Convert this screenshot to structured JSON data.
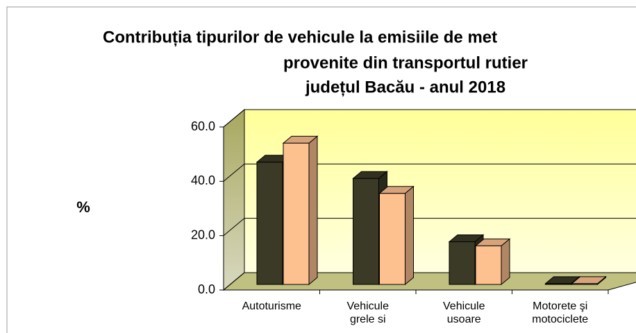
{
  "chart_data": {
    "type": "bar3d",
    "title": [
      "Contribuția tipurilor de vehicule la emisiile de met",
      "provenite din transportul rutier",
      "județul Bacău - anul 2018"
    ],
    "ylabel": "%",
    "categories": [
      [
        "Autoturisme"
      ],
      [
        "Vehicule",
        "grele si"
      ],
      [
        "Vehicule",
        "usoare"
      ],
      [
        "Motorete şi",
        "motociclete"
      ]
    ],
    "series": [
      {
        "color": "#3b3a26",
        "values": [
          45,
          39,
          15.7,
          0.3
        ]
      },
      {
        "color": "#fdc08f",
        "values": [
          52,
          33.5,
          14.2,
          0.3
        ]
      }
    ],
    "ylim": [
      0,
      60
    ],
    "yticks": [
      {
        "value": 0,
        "label": "0.0"
      },
      {
        "value": 20,
        "label": "20.0"
      },
      {
        "value": 40,
        "label": "40.0"
      },
      {
        "value": 60,
        "label": "60.0"
      }
    ],
    "grid": true
  }
}
